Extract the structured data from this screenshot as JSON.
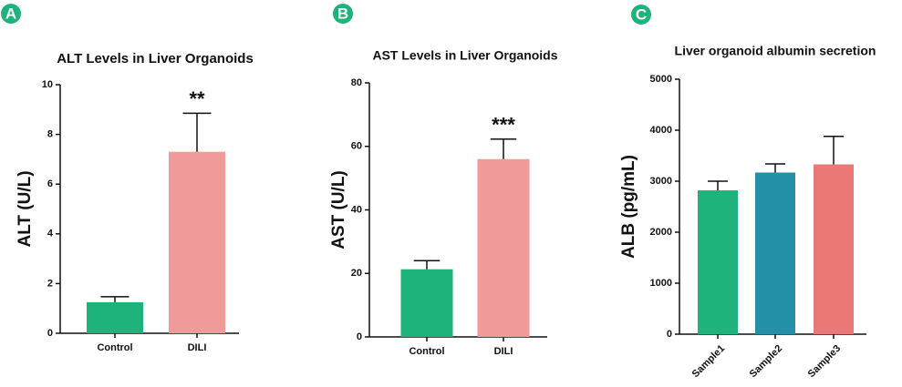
{
  "chart_data": [
    {
      "type": "bar",
      "label": "A",
      "label_color": "#1db37a",
      "title": "ALT Levels in  Liver Organoids",
      "y_label": "ALT (U/L)",
      "categories": [
        "Control",
        "DILI"
      ],
      "values": [
        1.25,
        7.3
      ],
      "errors": [
        0.22,
        1.55
      ],
      "significance": [
        null,
        "**"
      ],
      "colors": [
        "#1db37a",
        "#f09a9a"
      ],
      "ylim": [
        0,
        10
      ],
      "yticks": [
        0,
        2,
        4,
        6,
        8,
        10
      ]
    },
    {
      "type": "bar",
      "label": "B",
      "label_color": "#1db37a",
      "title": "AST Levels in  Liver Organoids",
      "y_label": "AST (U/L)",
      "categories": [
        "Control",
        "DILI"
      ],
      "values": [
        21.3,
        56
      ],
      "errors": [
        2.7,
        6.3
      ],
      "significance": [
        null,
        "***"
      ],
      "colors": [
        "#1db37a",
        "#f09a9a"
      ],
      "ylim": [
        0,
        80
      ],
      "yticks": [
        0,
        20,
        40,
        60,
        80
      ]
    },
    {
      "type": "bar",
      "label": "C",
      "label_color": "#1db37a",
      "title": "Liver organoid albumin secretion",
      "y_label": "ALB (pg/mL)",
      "categories": [
        "Sample1",
        "Sample2",
        "Sample3"
      ],
      "values": [
        2820,
        3170,
        3330
      ],
      "errors": [
        180,
        170,
        550
      ],
      "colors": [
        "#1db37a",
        "#2390a8",
        "#ec7777"
      ],
      "ylim": [
        0,
        5000
      ],
      "yticks": [
        0,
        1000,
        2000,
        3000,
        4000,
        5000
      ],
      "rotate_x_labels": true
    }
  ]
}
